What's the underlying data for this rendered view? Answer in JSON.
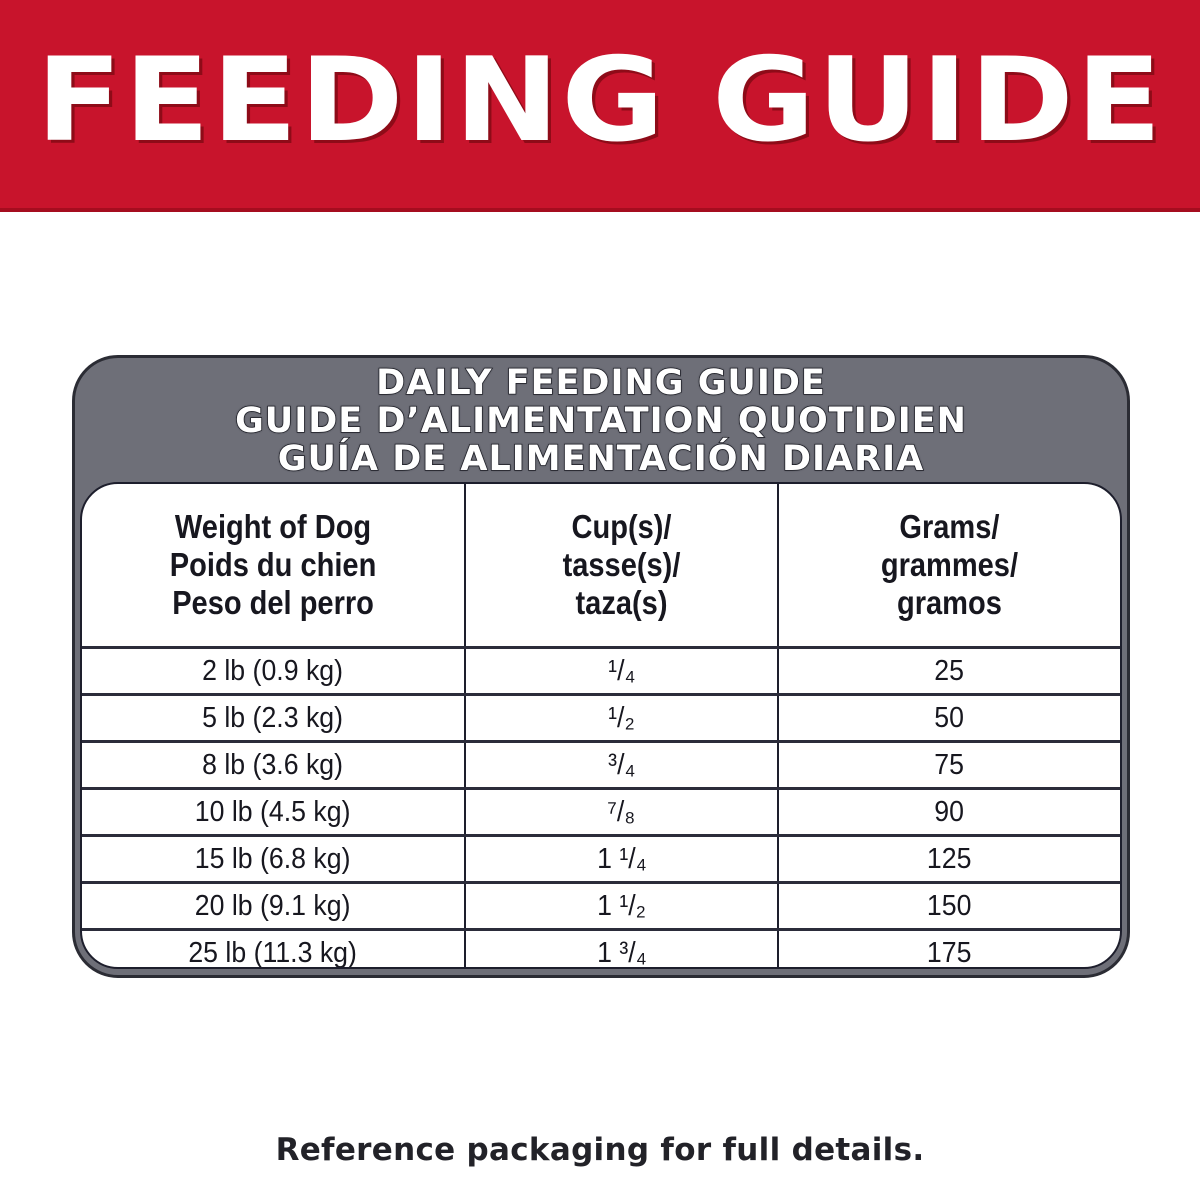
{
  "banner": {
    "title": "FEEDING GUIDE",
    "background_color": "#c8142c",
    "text_color": "#ffffff"
  },
  "panel": {
    "background_color": "#6e6f78",
    "header_lines": [
      "DAILY FEEDING GUIDE",
      "GUIDE D’ALIMENTATION QUOTIDIEN",
      "GUÍA DE ALIMENTACIÓN DIARIA"
    ]
  },
  "table": {
    "columns": [
      {
        "lines": [
          "Weight of Dog",
          "Poids du chien",
          "Peso del perro"
        ]
      },
      {
        "lines": [
          "Cup(s)/",
          "tasse(s)/",
          "taza(s)"
        ]
      },
      {
        "lines": [
          "Grams/",
          "grammes/",
          "gramos"
        ]
      }
    ],
    "rows": [
      {
        "weight": "2 lb (0.9 kg)",
        "cups": "¹/₄",
        "grams": "25"
      },
      {
        "weight": "5 lb (2.3 kg)",
        "cups": "¹/₂",
        "grams": "50"
      },
      {
        "weight": "8 lb (3.6 kg)",
        "cups": "³/₄",
        "grams": "75"
      },
      {
        "weight": "10 lb (4.5 kg)",
        "cups": "⁷/₈",
        "grams": "90"
      },
      {
        "weight": "15 lb (6.8 kg)",
        "cups": "1 ¹/₄",
        "grams": "125"
      },
      {
        "weight": "20 lb (9.1 kg)",
        "cups": "1 ¹/₂",
        "grams": "150"
      },
      {
        "weight": "25 lb (11.3 kg)",
        "cups": "1 ³/₄",
        "grams": "175"
      }
    ]
  },
  "footer": {
    "note": "Reference packaging for full details."
  }
}
